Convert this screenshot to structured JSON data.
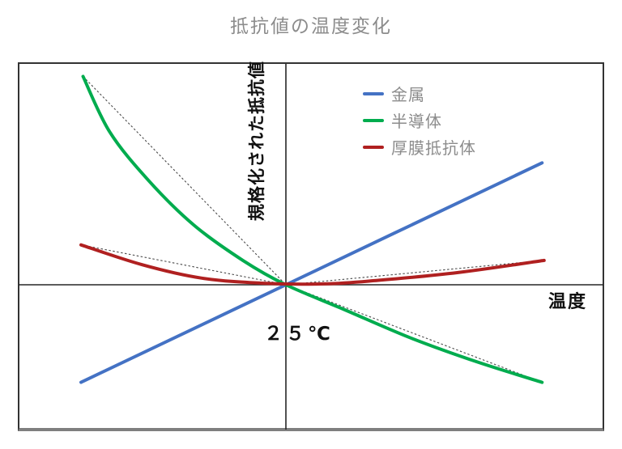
{
  "chart_data": {
    "type": "line",
    "title": "抵抗値の温度変化",
    "xlabel": "温度",
    "ylabel": "規格化された抵抗値",
    "reference_label": "２５℃",
    "axes": {
      "x_range": [
        -1.05,
        1.35
      ],
      "y_range": [
        -0.75,
        1.05
      ],
      "numeric_ticks": false,
      "grid": false,
      "origin_is_reference": true,
      "origin_meaning": "normalized resistance = 1 at 25℃"
    },
    "legend_position": "upper-right-inside",
    "series": [
      {
        "name": "金属",
        "color": "#4472C4",
        "style": "solid",
        "shape": "linear",
        "points": [
          [
            -1.0,
            -0.44
          ],
          [
            0,
            0
          ],
          [
            1.25,
            0.55
          ]
        ]
      },
      {
        "name": "半導体",
        "color": "#00AC4E",
        "style": "solid",
        "shape": "exponential-decay",
        "points": [
          [
            -0.99,
            0.94
          ],
          [
            -0.86,
            0.69
          ],
          [
            -0.67,
            0.47
          ],
          [
            -0.45,
            0.27
          ],
          [
            -0.21,
            0.11
          ],
          [
            0,
            0
          ],
          [
            0.28,
            -0.11
          ],
          [
            0.61,
            -0.24
          ],
          [
            0.94,
            -0.35
          ],
          [
            1.25,
            -0.44
          ]
        ]
      },
      {
        "name": "厚膜抵抗体",
        "color": "#B02020",
        "style": "solid",
        "shape": "parabolic-minimum-near-origin",
        "points": [
          [
            -1.0,
            0.18
          ],
          [
            -0.7,
            0.09
          ],
          [
            -0.41,
            0.03
          ],
          [
            -0.11,
            0.007
          ],
          [
            0.19,
            0.004
          ],
          [
            0.45,
            0.02
          ],
          [
            0.84,
            0.055
          ],
          [
            1.26,
            0.11
          ]
        ]
      }
    ],
    "annotations": {
      "dashed_chord_color": "#4a4a4a",
      "dashed_chords": [
        [
          [
            -0.99,
            0.94
          ],
          [
            0,
            0
          ]
        ],
        [
          [
            0,
            0
          ],
          [
            1.25,
            -0.44
          ]
        ],
        [
          [
            -1.0,
            0.18
          ],
          [
            0,
            0
          ]
        ],
        [
          [
            0,
            0
          ],
          [
            1.26,
            0.11
          ]
        ]
      ]
    },
    "frame": {
      "border_color": "#333333",
      "bottom_border_color": "#7f7f7f",
      "axis_color": "#262626"
    }
  }
}
